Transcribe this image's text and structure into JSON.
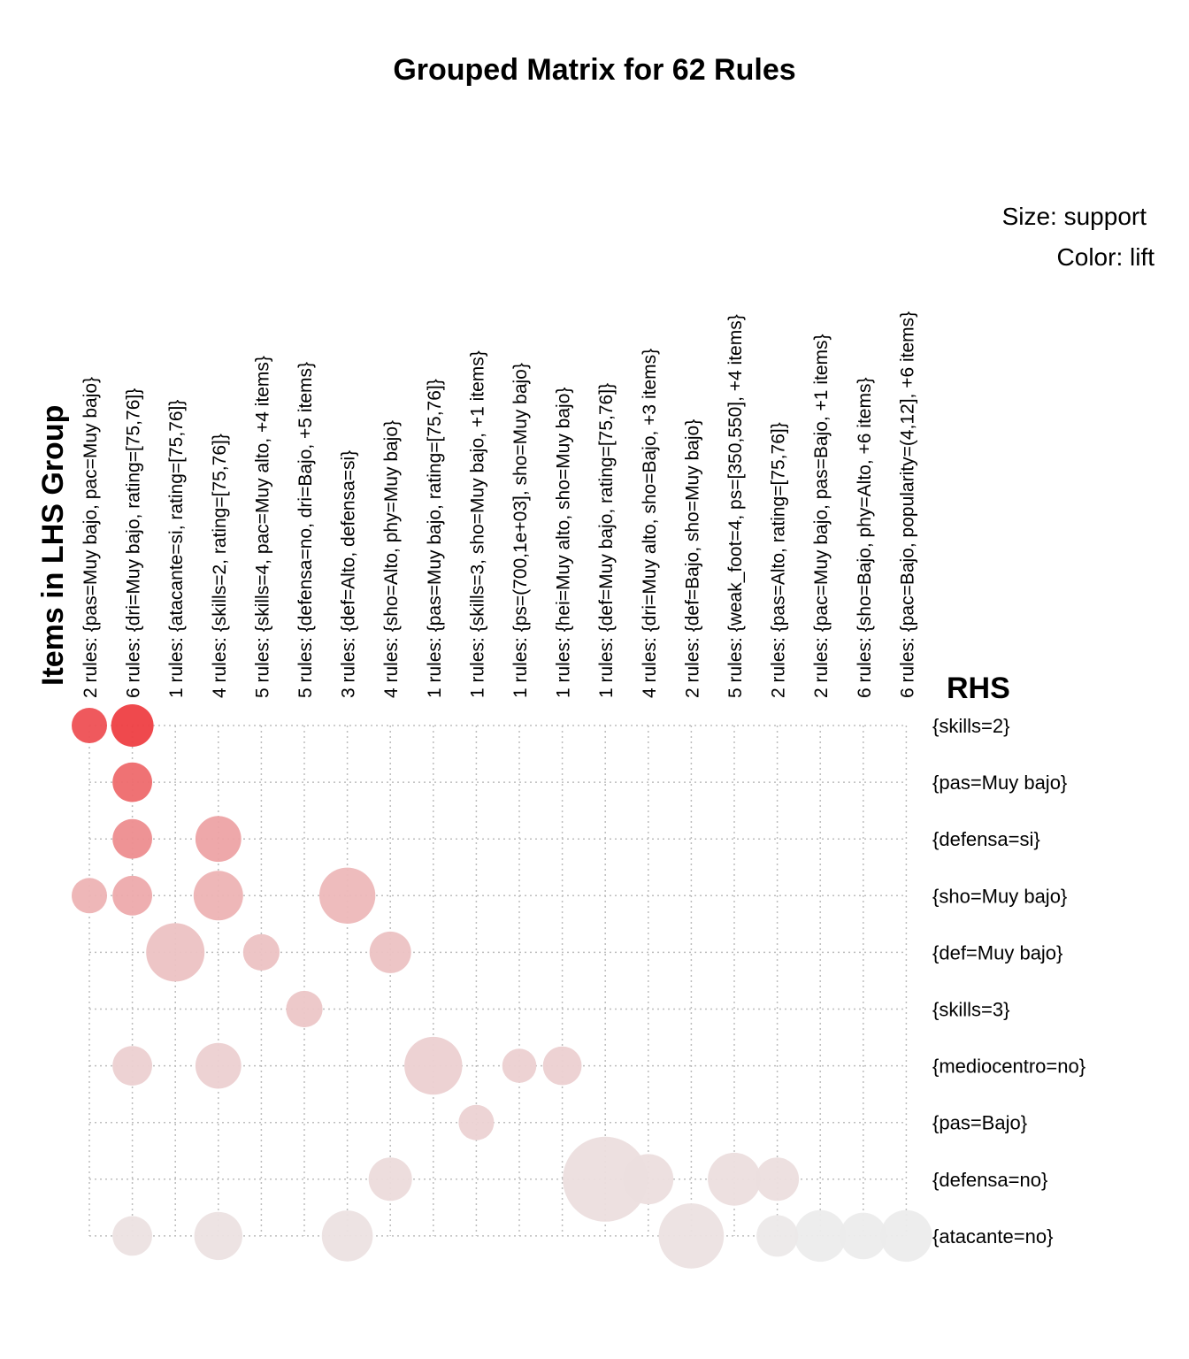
{
  "chart_data": {
    "type": "grouped-matrix (balloon)",
    "title": "Grouped Matrix for 62 Rules",
    "legend": {
      "size": "Size: support",
      "color": "Color: lift"
    },
    "xlabel": "Items in LHS Group",
    "ylabel": "RHS",
    "colors": {
      "high_lift": "#ee3f43",
      "low_lift": "#ececec"
    },
    "lhs_groups": [
      "2 rules: {pas=Muy bajo, pac=Muy bajo}",
      "6 rules: {dri=Muy bajo, rating=[75,76]}",
      "1 rules: {atacante=si, rating=[75,76]}",
      "4 rules: {skills=2, rating=[75,76]}",
      "5 rules: {skills=4, pac=Muy alto, +4 items}",
      "5 rules: {defensa=no, dri=Bajo, +5 items}",
      "3 rules: {def=Alto, defensa=si}",
      "4 rules: {sho=Alto, phy=Muy bajo}",
      "1 rules: {pas=Muy bajo, rating=[75,76]}",
      "1 rules: {skills=3, sho=Muy bajo, +1 items}",
      "1 rules: {ps=(700,1e+03], sho=Muy bajo}",
      "1 rules: {hei=Muy alto, sho=Muy bajo}",
      "1 rules: {def=Muy bajo, rating=[75,76]}",
      "4 rules: {dri=Muy alto, sho=Bajo, +3 items}",
      "2 rules: {def=Bajo, sho=Muy bajo}",
      "5 rules: {weak_foot=4, ps=[350,550], +4 items}",
      "2 rules: {pas=Alto, rating=[75,76]}",
      "2 rules: {pac=Muy bajo, pas=Bajo, +1 items}",
      "6 rules: {sho=Bajo, phy=Alto, +6 items}",
      "6 rules: {pac=Bajo, popularity=(4,12], +6 items}"
    ],
    "rhs_items": [
      "{skills=2}",
      "{pas=Muy bajo}",
      "{defensa=si}",
      "{sho=Muy bajo}",
      "{def=Muy bajo}",
      "{skills=3}",
      "{mediocentro=no}",
      "{pas=Bajo}",
      "{defensa=no}",
      "{atacante=no}"
    ],
    "points_note": "support and lift are relative values (0-1) estimated from balloon size and color; no absolute scale is printed",
    "points": [
      {
        "lhs": 0,
        "rhs": 0,
        "support": 0.09,
        "lift": 0.9
      },
      {
        "lhs": 1,
        "rhs": 0,
        "support": 0.16,
        "lift": 1.0
      },
      {
        "lhs": 1,
        "rhs": 1,
        "support": 0.13,
        "lift": 0.75
      },
      {
        "lhs": 1,
        "rhs": 2,
        "support": 0.13,
        "lift": 0.55
      },
      {
        "lhs": 3,
        "rhs": 2,
        "support": 0.2,
        "lift": 0.42
      },
      {
        "lhs": 0,
        "rhs": 3,
        "support": 0.09,
        "lift": 0.33
      },
      {
        "lhs": 1,
        "rhs": 3,
        "support": 0.13,
        "lift": 0.38
      },
      {
        "lhs": 3,
        "rhs": 3,
        "support": 0.25,
        "lift": 0.33
      },
      {
        "lhs": 6,
        "rhs": 3,
        "support": 0.35,
        "lift": 0.3
      },
      {
        "lhs": 2,
        "rhs": 4,
        "support": 0.39,
        "lift": 0.24
      },
      {
        "lhs": 4,
        "rhs": 4,
        "support": 0.1,
        "lift": 0.24
      },
      {
        "lhs": 7,
        "rhs": 4,
        "support": 0.15,
        "lift": 0.24
      },
      {
        "lhs": 5,
        "rhs": 5,
        "support": 0.1,
        "lift": 0.22
      },
      {
        "lhs": 1,
        "rhs": 6,
        "support": 0.13,
        "lift": 0.16
      },
      {
        "lhs": 3,
        "rhs": 6,
        "support": 0.2,
        "lift": 0.16
      },
      {
        "lhs": 8,
        "rhs": 6,
        "support": 0.38,
        "lift": 0.16
      },
      {
        "lhs": 10,
        "rhs": 6,
        "support": 0.08,
        "lift": 0.16
      },
      {
        "lhs": 11,
        "rhs": 6,
        "support": 0.12,
        "lift": 0.16
      },
      {
        "lhs": 9,
        "rhs": 7,
        "support": 0.09,
        "lift": 0.15
      },
      {
        "lhs": 7,
        "rhs": 8,
        "support": 0.17,
        "lift": 0.1
      },
      {
        "lhs": 12,
        "rhs": 8,
        "support": 1.0,
        "lift": 0.08
      },
      {
        "lhs": 13,
        "rhs": 8,
        "support": 0.26,
        "lift": 0.08
      },
      {
        "lhs": 15,
        "rhs": 8,
        "support": 0.3,
        "lift": 0.08
      },
      {
        "lhs": 16,
        "rhs": 8,
        "support": 0.17,
        "lift": 0.08
      },
      {
        "lhs": 1,
        "rhs": 9,
        "support": 0.13,
        "lift": 0.06
      },
      {
        "lhs": 3,
        "rhs": 9,
        "support": 0.23,
        "lift": 0.06
      },
      {
        "lhs": 6,
        "rhs": 9,
        "support": 0.27,
        "lift": 0.06
      },
      {
        "lhs": 14,
        "rhs": 9,
        "support": 0.52,
        "lift": 0.06
      },
      {
        "lhs": 16,
        "rhs": 9,
        "support": 0.15,
        "lift": 0.02
      },
      {
        "lhs": 17,
        "rhs": 9,
        "support": 0.28,
        "lift": 0.0
      },
      {
        "lhs": 18,
        "rhs": 9,
        "support": 0.21,
        "lift": 0.0
      },
      {
        "lhs": 19,
        "rhs": 9,
        "support": 0.28,
        "lift": 0.0
      }
    ]
  }
}
